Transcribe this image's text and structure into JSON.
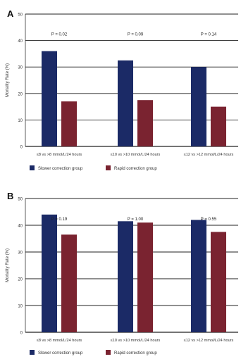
{
  "colors": {
    "slower": "#1b2a66",
    "rapid": "#7a2330",
    "axis": "#333333",
    "grid": "#222222"
  },
  "chart_data": [
    {
      "type": "bar",
      "panel_label": "A",
      "ylabel": "Mortality Rate (%)",
      "ylim": [
        0,
        50
      ],
      "yticks": [
        0,
        10,
        20,
        30,
        40,
        50
      ],
      "grid": true,
      "categories": [
        "≤8 vs >8 mmol/L/24 hours",
        "≤10 vs >10 mmol/L/24 hours",
        "≤12 vs >12 mmol/L/24 hours"
      ],
      "p_values": [
        "P = 0.02",
        "P = 0.09",
        "P = 0.14"
      ],
      "series": [
        {
          "name": "Slower correction group",
          "values": [
            36,
            32.5,
            30
          ]
        },
        {
          "name": "Rapid correction group",
          "values": [
            17,
            17.5,
            15
          ]
        }
      ],
      "legend_position": "bottom"
    },
    {
      "type": "bar",
      "panel_label": "B",
      "ylabel": "Mortality Rate (%)",
      "ylim": [
        0,
        50
      ],
      "yticks": [
        0,
        10,
        20,
        30,
        40,
        50
      ],
      "grid": true,
      "categories": [
        "≤8 vs >8 mmol/L/24 hours",
        "≤10 vs >10 mmol/L/24 hours",
        "≤12 vs >12 mmol/L/24 hours"
      ],
      "p_values": [
        "P = 0.19",
        "P = 1.00",
        "P = 0.55"
      ],
      "series": [
        {
          "name": "Slower correction group",
          "values": [
            44,
            41.5,
            42
          ]
        },
        {
          "name": "Rapid correction group",
          "values": [
            36.5,
            41,
            37.5
          ]
        }
      ],
      "legend_position": "bottom"
    }
  ]
}
